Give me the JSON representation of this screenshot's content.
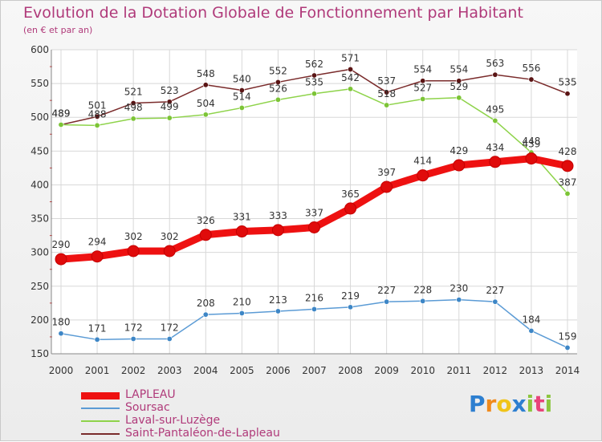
{
  "header": {
    "title": "Evolution de la Dotation Globale de Fonctionnement par Habitant",
    "subtitle": "(en € et par an)"
  },
  "logo": {
    "letters": [
      "P",
      "r",
      "o",
      "x",
      "i",
      "t",
      "i"
    ],
    "colors": [
      "#2d7fd0",
      "#f08a1c",
      "#f0c419",
      "#2d7fd0",
      "#8cc63f",
      "#e8447a",
      "#8cc63f"
    ]
  },
  "chart_data": {
    "type": "line",
    "title": "Evolution de la Dotation Globale de Fonctionnement par Habitant",
    "subtitle": "(en € et par an)",
    "xlabel": "",
    "ylabel": "",
    "ylim": [
      150,
      600
    ],
    "yticks": [
      150,
      200,
      250,
      300,
      350,
      400,
      450,
      500,
      550,
      600
    ],
    "grid": true,
    "x": [
      "2000",
      "2001",
      "2002",
      "2003",
      "2004",
      "2005",
      "2006",
      "2007",
      "2008",
      "2009",
      "2010",
      "2011",
      "2012",
      "2013",
      "2014"
    ],
    "series": [
      {
        "name": "Saint-Pantaléon-de-Lapleau",
        "color": "#7a2b2b",
        "dot": "#5a1414",
        "values": [
          489,
          501,
          521,
          523,
          548,
          540,
          552,
          562,
          571,
          537,
          554,
          554,
          563,
          556,
          535
        ]
      },
      {
        "name": "Laval-sur-Luzège",
        "color": "#8ed34a",
        "dot": "#7cc436",
        "values": [
          489,
          488,
          498,
          499,
          504,
          514,
          526,
          535,
          542,
          518,
          527,
          529,
          495,
          448,
          387
        ]
      },
      {
        "name": "Soursac",
        "color": "#5b9bd5",
        "dot": "#3d86c6",
        "values": [
          180,
          171,
          172,
          172,
          208,
          210,
          213,
          216,
          219,
          227,
          228,
          230,
          227,
          184,
          159
        ]
      },
      {
        "name": "LAPLEAU",
        "color": "#ee1111",
        "dot": "#e00b0b",
        "values": [
          290,
          294,
          302,
          302,
          326,
          331,
          333,
          337,
          365,
          397,
          414,
          429,
          434,
          439,
          428
        ]
      }
    ],
    "legend": [
      "LAPLEAU",
      "Soursac",
      "Laval-sur-Luzège",
      "Saint-Pantaléon-de-Lapleau"
    ],
    "legend_position": "bottom-left"
  }
}
